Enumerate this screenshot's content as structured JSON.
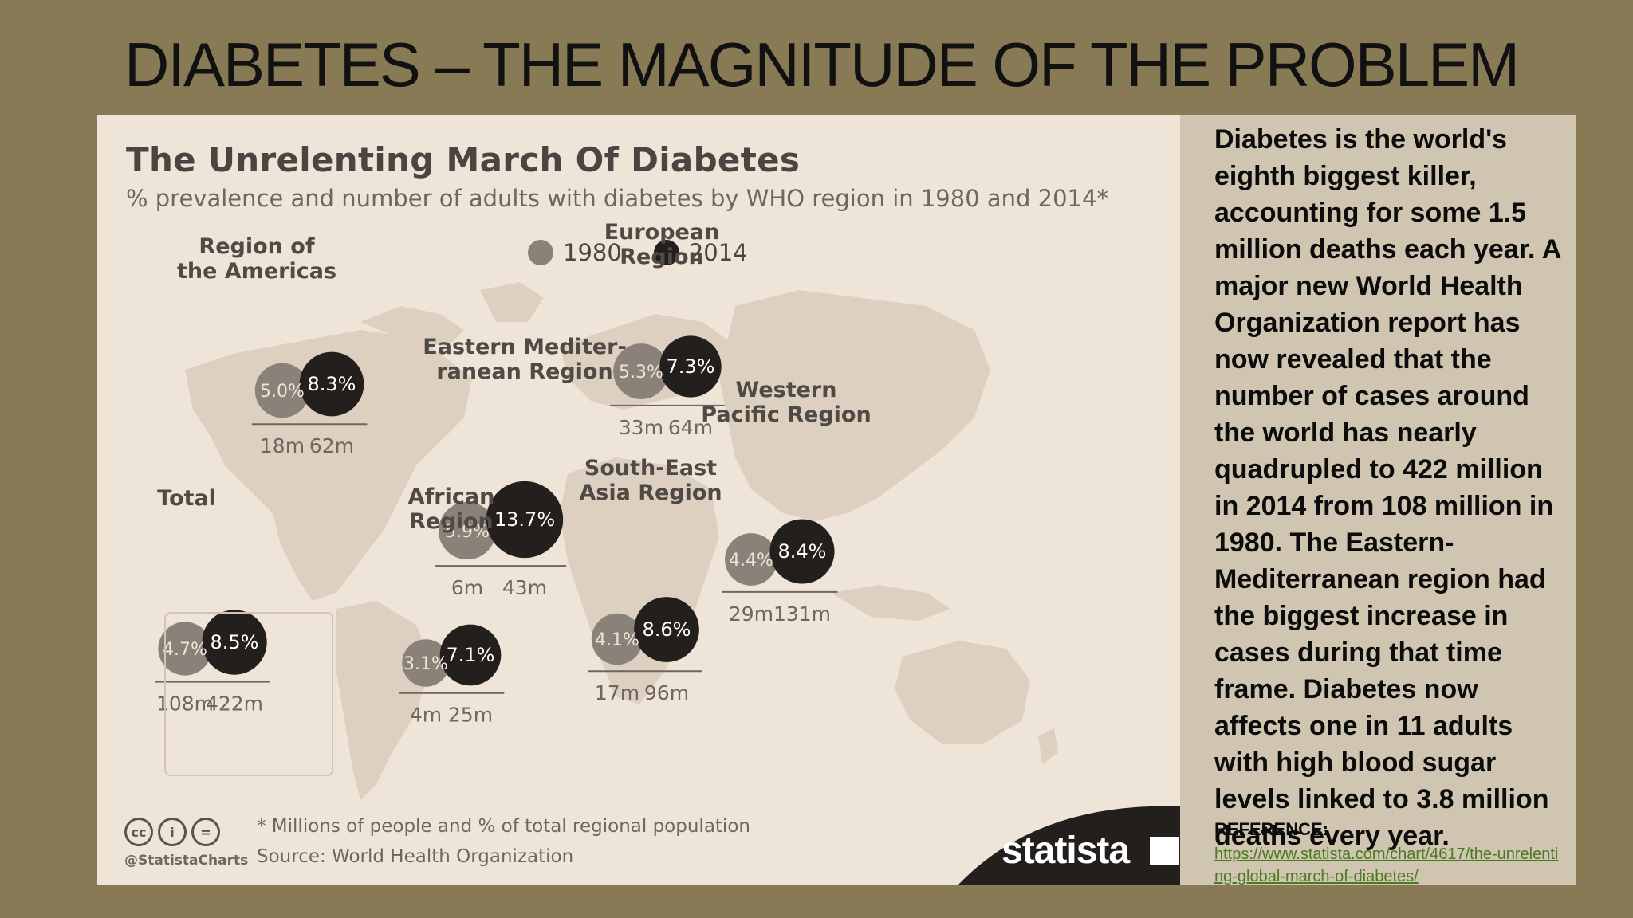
{
  "slide": {
    "title": "DIABETES – THE MAGNITUDE OF THE PROBLEM"
  },
  "chart_data": {
    "type": "bubble-map",
    "title": "The Unrelenting March Of Diabetes",
    "subtitle": "% prevalence and number of adults with diabetes by WHO region in 1980 and 2014*",
    "legend": [
      {
        "label": "1980",
        "color": "#8a8278"
      },
      {
        "label": "2014",
        "color": "#231f1c"
      }
    ],
    "series": [
      {
        "name": "1980",
        "color": "#8a8278"
      },
      {
        "name": "2014",
        "color": "#231f1c"
      }
    ],
    "regions": [
      {
        "name": "Region of\nthe Americas",
        "prevalence_1980": "5.0%",
        "prevalence_2014": "8.3%",
        "adults_1980": "18m",
        "adults_2014": "62m",
        "p1980": 5.0,
        "p2014": 8.3
      },
      {
        "name": "European\nRegion",
        "prevalence_1980": "5.3%",
        "prevalence_2014": "7.3%",
        "adults_1980": "33m",
        "adults_2014": "64m",
        "p1980": 5.3,
        "p2014": 7.3
      },
      {
        "name": "Eastern Mediter-\nranean Region",
        "prevalence_1980": "5.9%",
        "prevalence_2014": "13.7%",
        "adults_1980": "6m",
        "adults_2014": "43m",
        "p1980": 5.9,
        "p2014": 13.7
      },
      {
        "name": "Western\nPacific Region",
        "prevalence_1980": "4.4%",
        "prevalence_2014": "8.4%",
        "adults_1980": "29m",
        "adults_2014": "131m",
        "p1980": 4.4,
        "p2014": 8.4
      },
      {
        "name": "South-East\nAsia Region",
        "prevalence_1980": "4.1%",
        "prevalence_2014": "8.6%",
        "adults_1980": "17m",
        "adults_2014": "96m",
        "p1980": 4.1,
        "p2014": 8.6
      },
      {
        "name": "African\nRegion",
        "prevalence_1980": "3.1%",
        "prevalence_2014": "7.1%",
        "adults_1980": "4m",
        "adults_2014": "25m",
        "p1980": 3.1,
        "p2014": 7.1
      },
      {
        "name": "Total",
        "prevalence_1980": "4.7%",
        "prevalence_2014": "8.5%",
        "adults_1980": "108m",
        "adults_2014": "422m",
        "p1980": 4.7,
        "p2014": 8.5
      }
    ],
    "footnote": "* Millions of people and % of total regional population",
    "source": "Source: World Health Organization",
    "handle": "@StatistaCharts",
    "brand": "statista"
  },
  "side_panel": {
    "text": "Diabetes is the world's eighth biggest killer, accounting for some 1.5 million deaths each year. A major new World Health Organization report has now revealed that the number of cases around the world has nearly quadrupled to 422 million in 2014 from 108 million in 1980. The Eastern-Mediterranean region had the biggest increase in cases during that time frame. Diabetes now affects one in 11 adults with high blood sugar levels linked to 3.8 million deaths every year.",
    "reference_label": "REFERENCE:",
    "reference_url": "https://www.statista.com/chart/4617/the-unrelenting-global-march-of-diabetes/"
  },
  "icons": {
    "cc": "creative-commons-icon",
    "by": "attribution-icon",
    "nd": "no-derivatives-icon",
    "brand_mark": "statista-logo-icon"
  }
}
